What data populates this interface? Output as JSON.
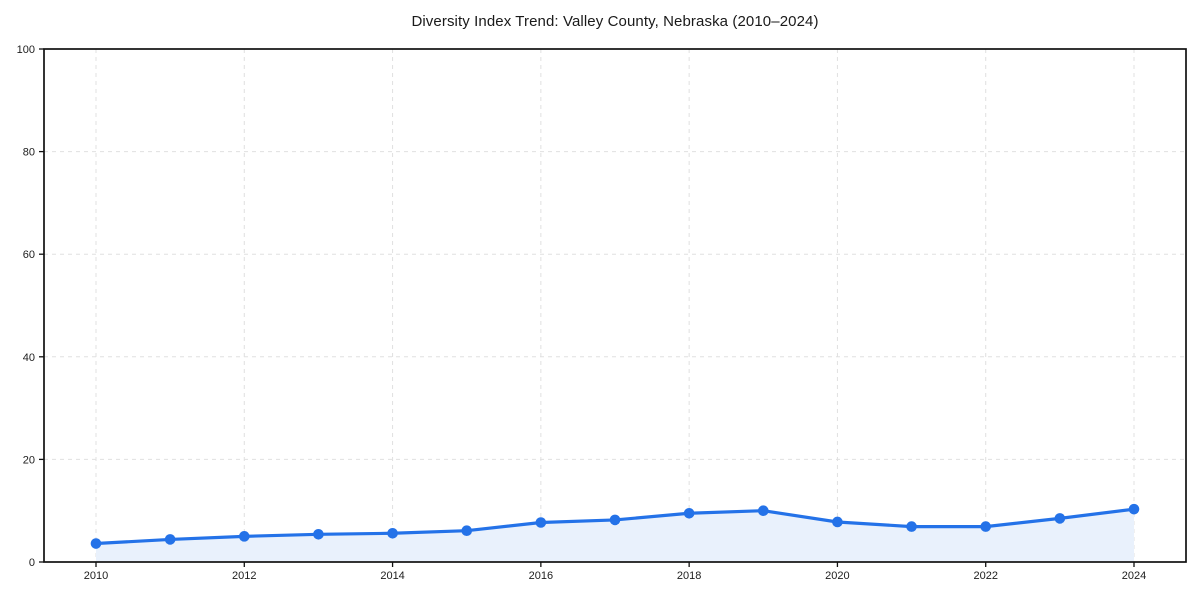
{
  "chart_data": {
    "type": "line",
    "title": "Diversity Index Trend: Valley County, Nebraska (2010–2024)",
    "x": [
      2010,
      2011,
      2012,
      2013,
      2014,
      2015,
      2016,
      2017,
      2018,
      2019,
      2020,
      2021,
      2022,
      2023,
      2024
    ],
    "series": [
      {
        "name": "Diversity Index",
        "values": [
          3.6,
          4.4,
          5.0,
          5.4,
          5.6,
          6.1,
          7.7,
          8.2,
          9.5,
          10.0,
          7.8,
          6.9,
          6.9,
          8.5,
          10.3
        ]
      }
    ],
    "xlabel": "",
    "ylabel": "",
    "ylim": [
      0,
      100
    ],
    "yticks": [
      0,
      20,
      40,
      60,
      80,
      100
    ],
    "xticks": [
      2010,
      2012,
      2014,
      2016,
      2018,
      2020,
      2022,
      2024
    ],
    "grid": true,
    "legend": "none",
    "style": {
      "line_color": "#2472e8",
      "marker_color": "#2472e8",
      "fill_color": "#e9f1fc",
      "grid_color": "#e0e0e0",
      "axis_color": "#111111",
      "tick_label_color": "#1d1d1d",
      "title_color": "#1a1a1a",
      "background_color": "#ffffff",
      "marker": "circle",
      "fill_under_line": true
    }
  }
}
